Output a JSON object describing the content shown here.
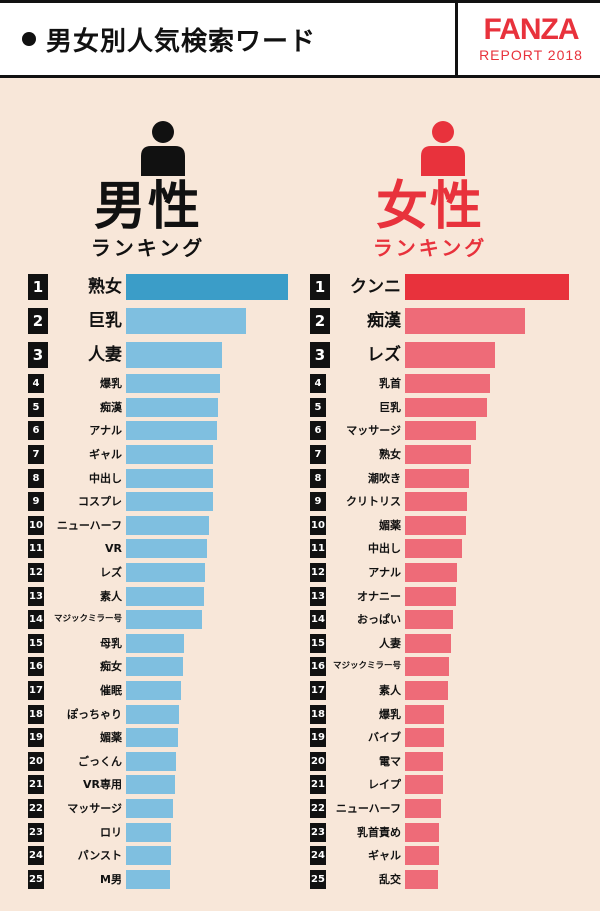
{
  "header": {
    "title": "男女別人気検索ワード",
    "brand_logo": "FANZA",
    "brand_sub": "REPORT 2018"
  },
  "colors": {
    "male_top_bar": "#3b9dc8",
    "male_bar": "#7fbfe0",
    "female_top_bar": "#e8323c",
    "female_bar": "#ee6b78",
    "background": "#f8e7d9",
    "accent": "#e8323c"
  },
  "male": {
    "title": "男性",
    "subtitle": "ランキング",
    "icon": "male-person-icon"
  },
  "female": {
    "title": "女性",
    "subtitle": "ランキング",
    "icon": "female-person-icon"
  },
  "chart_data": [
    {
      "type": "bar",
      "orientation": "horizontal",
      "title": "男性",
      "subtitle": "ランキング",
      "ranks": [
        1,
        2,
        3,
        4,
        5,
        6,
        7,
        8,
        9,
        10,
        11,
        12,
        13,
        14,
        15,
        16,
        17,
        18,
        19,
        20,
        21,
        22,
        23,
        24,
        25
      ],
      "categories": [
        "熟女",
        "巨乳",
        "人妻",
        "爆乳",
        "痴漢",
        "アナル",
        "ギャル",
        "中出し",
        "コスプレ",
        "ニューハーフ",
        "VR",
        "レズ",
        "素人",
        "マジックミラー号",
        "母乳",
        "痴女",
        "催眠",
        "ぽっちゃり",
        "媚薬",
        "ごっくん",
        "VR専用",
        "マッサージ",
        "ロリ",
        "パンスト",
        "M男"
      ],
      "values": [
        100,
        74,
        59,
        58,
        57,
        56,
        54,
        54,
        54,
        51,
        50,
        49,
        48,
        47,
        36,
        35,
        34,
        33,
        32,
        31,
        30,
        29,
        28,
        28,
        27
      ]
    },
    {
      "type": "bar",
      "orientation": "horizontal",
      "title": "女性",
      "subtitle": "ランキング",
      "ranks": [
        1,
        2,
        3,
        4,
        5,
        6,
        7,
        8,
        9,
        10,
        11,
        12,
        13,
        14,
        15,
        16,
        17,
        18,
        19,
        20,
        21,
        22,
        23,
        24,
        25
      ],
      "categories": [
        "クンニ",
        "痴漢",
        "レズ",
        "乳首",
        "巨乳",
        "マッサージ",
        "熟女",
        "潮吹き",
        "クリトリス",
        "媚薬",
        "中出し",
        "アナル",
        "オナニー",
        "おっぱい",
        "人妻",
        "マジックミラー号",
        "素人",
        "爆乳",
        "バイブ",
        "電マ",
        "レイプ",
        "ニューハーフ",
        "乳首責め",
        "ギャル",
        "乱交"
      ],
      "values": [
        100,
        73,
        55,
        52,
        50,
        43,
        40,
        39,
        38,
        37,
        35,
        32,
        31,
        29,
        28,
        27,
        26,
        24,
        24,
        23,
        23,
        22,
        21,
        21,
        20
      ]
    }
  ]
}
